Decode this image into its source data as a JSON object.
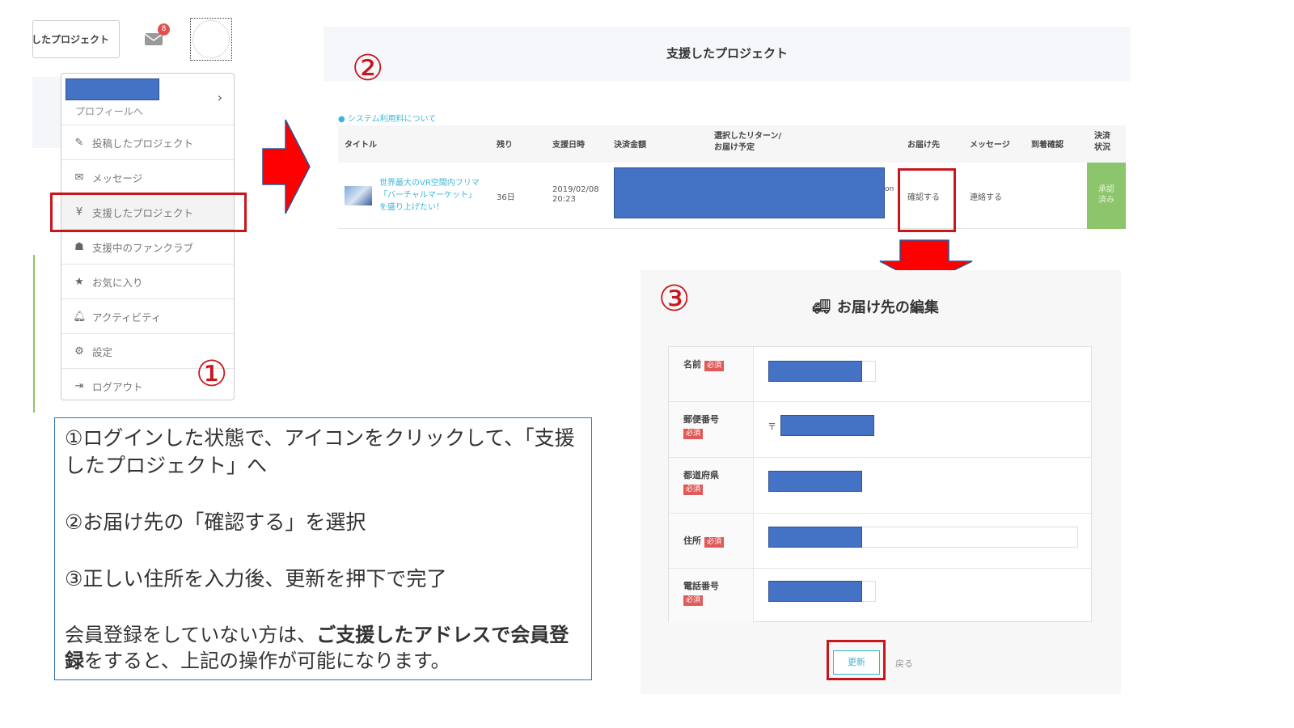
{
  "header": {
    "button_label": "したプロジェクト",
    "mail_badge": "8"
  },
  "menu": {
    "profile_link": "プロフィールへ",
    "items": [
      {
        "icon": "pencil-icon",
        "label": "投稿したプロジェクト"
      },
      {
        "icon": "envelope-icon",
        "label": "メッセージ"
      },
      {
        "icon": "yen-icon",
        "label": "支援したプロジェクト"
      },
      {
        "icon": "users-icon",
        "label": "支援中のファンクラブ"
      },
      {
        "icon": "star-icon",
        "label": "お気に入り"
      },
      {
        "icon": "bell-icon",
        "label": "アクティビティ"
      },
      {
        "icon": "gear-icon",
        "label": "設定"
      },
      {
        "icon": "logout-icon",
        "label": "ログアウト"
      }
    ]
  },
  "steps": {
    "one": "①",
    "two": "②",
    "three": "③"
  },
  "instructions": {
    "step1": "①ログインした状態で、アイコンをクリックして、「支援したプロジェクト」へ",
    "step2": "②お届け先の「確認する」を選択",
    "step3": "③正しい住所を入力後、更新を押下で完了",
    "note_pre": "会員登録をしていない方は、",
    "note_bold1": "ご支援したアドレスで会員登録",
    "note_post": "をすると、上記の操作が可能になります。"
  },
  "backed": {
    "title": "支援したプロジェクト",
    "info_link": "システム利用料について",
    "columns": [
      "タイトル",
      "残り",
      "支援日時",
      "決済金額",
      "選択したリターン/\nお届け予定",
      "お届け先",
      "メッセージ",
      "到着確認",
      "決済\n状況"
    ],
    "row": {
      "title": "世界最大のVR空間内フリマ「バーチャルマーケット」を盛り上げたい！",
      "remaining": "36日",
      "date": "2019/02/08\n20:23",
      "fragment": "on",
      "address": "確認する",
      "message": "連絡する",
      "status": "承認\n済み"
    }
  },
  "edit": {
    "title": "お届け先の編集",
    "required": "必須",
    "postal_mark": "〒",
    "fields": [
      "名前",
      "郵便番号",
      "都道府県",
      "住所",
      "電話番号"
    ],
    "update_button": "更新",
    "back_link": "戻る"
  },
  "colors": {
    "accent_red": "#c8161d",
    "redaction": "#4472c4",
    "status_green": "#8cc56b",
    "link": "#3bb6d6"
  }
}
